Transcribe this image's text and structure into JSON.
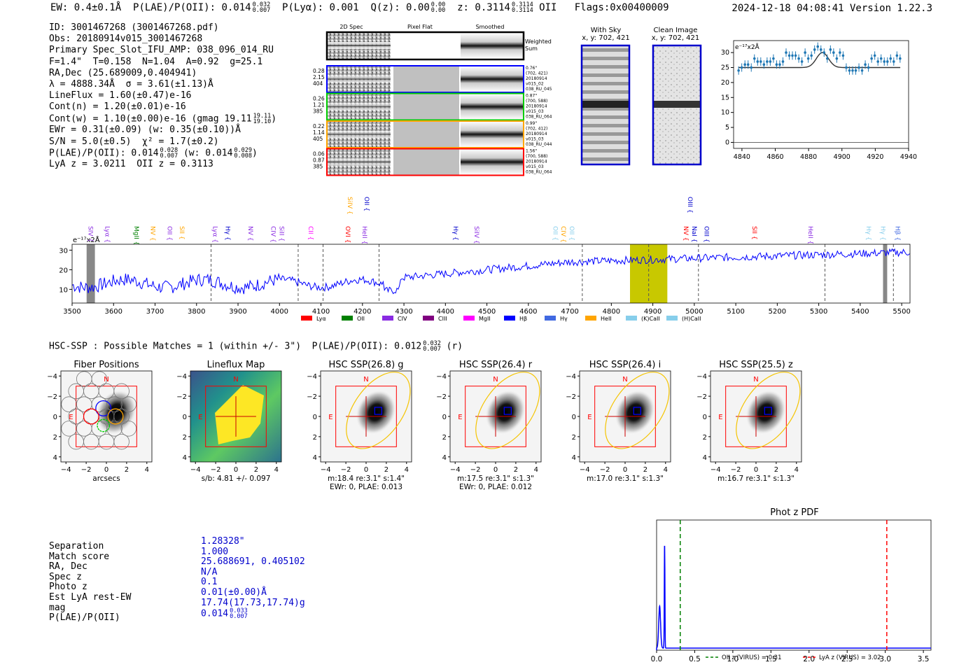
{
  "header": {
    "ew": "EW: 0.4±0.1Å",
    "plae_label": "P(LAE)/P(OII): 0.014",
    "plae_sup": [
      "0.032",
      "0.007"
    ],
    "plya": "P(Lyα): 0.001",
    "qz_label": "Q(z): 0.00",
    "qz_sup": [
      "0.00",
      "0.00"
    ],
    "z_label": "z: 0.3114",
    "z_sup": [
      "0.3114",
      "0.3114"
    ],
    "z_line": "OII",
    "flags": "Flags:0x00400009",
    "timestamp": "2024-12-18 04:08:41  Version 1.22.3"
  },
  "info": {
    "id": "ID: 3001467268 (3001467268.pdf)",
    "obs": "Obs: 20180914v015_3001467268",
    "slot": "Primary Spec_Slot_IFU_AMP: 038_096_014_RU",
    "fit": "F=1.4\"  T=0.158  N=1.04  A=0.92  g=25.1",
    "radec": "RA,Dec (25.689009,0.404941)",
    "lambda": "λ = 4888.34Å  σ = 3.61(±1.13)Å",
    "lineflux": "LineFlux = 1.60(±0.47)e-16",
    "contn": "Cont(n) = 1.20(±0.01)e-16",
    "contw": "Cont(w) = 1.10(±0.00)e-16 (gmag 19.11",
    "contw_sup": [
      "19.11",
      "19.10"
    ],
    "ewr": "EWr = 0.31(±0.09) (w: 0.35(±0.10))Å",
    "sn": "S/N = 5.0(±0.5)  χ² = 1.7(±0.2)",
    "plae": "P(LAE)/P(OII): 0.014",
    "plae_sup": [
      "0.028",
      "0.007"
    ],
    "plae_w": "(w: 0.014",
    "plae_w_sup": [
      "0.029",
      "0.008"
    ],
    "lyaz": "LyA z = 3.0211  OII z = 0.3113"
  },
  "cutouts": {
    "col_headers": [
      "2D Spec",
      "Pixel Flat",
      "Smoothed"
    ],
    "weighted_sum": [
      "Weighted",
      "Sum"
    ],
    "rows": [
      {
        "color": "#0000ff",
        "left": [
          "0.28",
          "2.15",
          "404"
        ],
        "right": [
          "0.76\"",
          "(702, 421)",
          "20180914",
          "v015_02",
          "038_RU_045"
        ]
      },
      {
        "color": "#00cc00",
        "left": [
          "0.26",
          "1.21",
          "385"
        ],
        "right": [
          "0.87\"",
          "(700, 588)",
          "20180914",
          "v015_03",
          "038_RU_064"
        ]
      },
      {
        "color": "#ffa500",
        "left": [
          "0.22",
          "1.14",
          "405"
        ],
        "right": [
          "0.99\"",
          "(702, 412)",
          "20180914",
          "v015_03",
          "038_RU_044"
        ]
      },
      {
        "color": "#ff0000",
        "left": [
          "0.06",
          "0.87",
          "385"
        ],
        "right": [
          "1.56\"",
          "(700, 588)",
          "20180914",
          "v015_03",
          "038_RU_064"
        ]
      }
    ],
    "with_sky": {
      "title": "With Sky",
      "coords": "x, y: 702, 421"
    },
    "clean": {
      "title": "Clean Image",
      "coords": "x, y: 702, 421"
    }
  },
  "zoom_chart": {
    "type": "scatter",
    "ylabel": "e⁻¹⁷x2Å",
    "xlim": [
      4835,
      4940
    ],
    "ylim": [
      -2,
      34
    ],
    "xticks": [
      "4840",
      "4860",
      "4880",
      "4900",
      "4920",
      "4940"
    ],
    "yticks": [
      "0",
      "5",
      "10",
      "15",
      "20",
      "25",
      "30"
    ]
  },
  "spectrum": {
    "ylabel": "e⁻¹⁷x2Å",
    "xticks": [
      "3500",
      "3600",
      "3700",
      "3800",
      "3900",
      "4000",
      "4100",
      "4200",
      "4300",
      "4400",
      "4500",
      "4600",
      "4700",
      "4800",
      "4900",
      "5000",
      "5100",
      "5200",
      "5300",
      "5400",
      "5500"
    ],
    "yticks": [
      "10",
      "20",
      "30"
    ],
    "lines": [
      {
        "label": "SIV",
        "color": "#8a2be2",
        "w": 3540,
        "row": 1
      },
      {
        "label": "Lyα",
        "color": "#8a2be2",
        "w": 3580,
        "row": 1
      },
      {
        "label": "MgII",
        "color": "#008000",
        "w": 3650,
        "row": 1
      },
      {
        "label": "NV",
        "color": "#ffa500",
        "w": 3690,
        "row": 1
      },
      {
        "label": "OII",
        "color": "#8a2be2",
        "w": 3730,
        "row": 1
      },
      {
        "label": "SII",
        "color": "#ffa500",
        "w": 3760,
        "row": 1
      },
      {
        "label": "Lyα",
        "color": "#8a2be2",
        "w": 3840,
        "row": 1
      },
      {
        "label": "Hγ",
        "color": "#0000cc",
        "w": 3870,
        "row": 1
      },
      {
        "label": "NV",
        "color": "#8a2be2",
        "w": 3925,
        "row": 1
      },
      {
        "label": "CIV",
        "color": "#8a2be2",
        "w": 3980,
        "row": 1
      },
      {
        "label": "SiII",
        "color": "#8a2be2",
        "w": 4000,
        "row": 1
      },
      {
        "label": "CII",
        "color": "#ff00ff",
        "w": 4070,
        "row": 1
      },
      {
        "label": "OVI",
        "color": "#ff0000",
        "w": 4160,
        "row": 1
      },
      {
        "label": "HeII",
        "color": "#8a2be2",
        "w": 4200,
        "row": 1
      },
      {
        "label": "SiIV",
        "color": "#ffa500",
        "w": 4165,
        "row": 0
      },
      {
        "label": "OII",
        "color": "#0000cc",
        "w": 4205,
        "row": 0
      },
      {
        "label": "Hγ",
        "color": "#0000cc",
        "w": 4420,
        "row": 1
      },
      {
        "label": "SiIV",
        "color": "#8a2be2",
        "w": 4470,
        "row": 1
      },
      {
        "label": "OII",
        "color": "#87ceeb",
        "w": 4660,
        "row": 1
      },
      {
        "label": "CIV",
        "color": "#ffa500",
        "w": 4680,
        "row": 1
      },
      {
        "label": "OII",
        "color": "#87ceeb",
        "w": 4700,
        "row": 1
      },
      {
        "label": "NV",
        "color": "#ff0000",
        "w": 4975,
        "row": 1
      },
      {
        "label": "NaI",
        "color": "#0000cc",
        "w": 4995,
        "row": 1
      },
      {
        "label": "OIII",
        "color": "#0000cc",
        "w": 5025,
        "row": 1
      },
      {
        "label": "OIII",
        "color": "#0000cc",
        "w": 4985,
        "row": 0
      },
      {
        "label": "SII",
        "color": "#ff0000",
        "w": 5140,
        "row": 1
      },
      {
        "label": "HeII",
        "color": "#8a2be2",
        "w": 5275,
        "row": 1
      },
      {
        "label": "Hγ",
        "color": "#87ceeb",
        "w": 5415,
        "row": 1
      },
      {
        "label": "Hγ",
        "color": "#87ceeb",
        "w": 5450,
        "row": 1
      },
      {
        "label": "Hβ",
        "color": "#4169e1",
        "w": 5485,
        "row": 1
      }
    ],
    "legend": [
      {
        "label": "Lyα",
        "color": "#ff0000"
      },
      {
        "label": "OII",
        "color": "#008000"
      },
      {
        "label": "CIV",
        "color": "#8a2be2"
      },
      {
        "label": "CIII",
        "color": "#800080"
      },
      {
        "label": "MgII",
        "color": "#ff00ff"
      },
      {
        "label": "Hβ",
        "color": "#0000ff"
      },
      {
        "label": "Hγ",
        "color": "#4169e1"
      },
      {
        "label": "HeII",
        "color": "#ffa500"
      },
      {
        "label": "(K)CaII",
        "color": "#87ceeb"
      },
      {
        "label": "(H)CaII",
        "color": "#87ceeb"
      }
    ]
  },
  "hsc": {
    "line_label": "HSC-SSP : Possible Matches = 1 (within +/- 3\")  P(LAE)/P(OII): 0.012",
    "line_sup": [
      "0.032",
      "0.007"
    ],
    "line_tail": "(r)"
  },
  "panels": [
    {
      "title": "Fiber Positions",
      "sub1": "arcsecs",
      "sub2": ""
    },
    {
      "title": "Lineflux Map",
      "sub1": "s/b: 4.81 +/- 0.097",
      "sub2": ""
    },
    {
      "title": "HSC SSP(26.8) g",
      "sub1": "m:18.4  re:3.1\"  s:1.4\"",
      "sub2": "EWr: 0, PLAE: 0.013"
    },
    {
      "title": "HSC SSP(26.4) r",
      "sub1": "m:17.5  re:3.1\"  s:1.3\"",
      "sub2": "EWr: 0, PLAE: 0.012"
    },
    {
      "title": "HSC SSP(26.4) i",
      "sub1": "m:17.0  re:3.1\"  s:1.3\"",
      "sub2": ""
    },
    {
      "title": "HSC SSP(25.5) z",
      "sub1": "m:16.7  re:3.1\"  s:1.3\"",
      "sub2": ""
    }
  ],
  "panel_axes": {
    "ticks": [
      "−4",
      "−2",
      "0",
      "2",
      "4"
    ],
    "n_label": "N",
    "e_label": "E"
  },
  "separation": {
    "labels": [
      "Separation",
      "Match score",
      "RA, Dec",
      "Spec z",
      "Photo z",
      "Est LyA rest-EW",
      "mag",
      "P(LAE)/P(OII)"
    ],
    "values": [
      "1.28328\"",
      "1.000",
      "25.688691, 0.405102",
      "N/A",
      "0.1",
      "0.01(±0.00)Å",
      "17.74(17.73,17.74)g",
      "0.014"
    ],
    "plae_sup": [
      "0.033",
      "0.007"
    ]
  },
  "photz": {
    "title": "Phot z PDF",
    "type": "line",
    "xlim": [
      0,
      3.6
    ],
    "xticks": [
      "0.0",
      "0.5",
      "1.0",
      "1.5",
      "2.0",
      "2.5",
      "3.0",
      "3.5"
    ],
    "oii_z": 0.31,
    "lya_z": 3.02,
    "legend": [
      "OII z (VIRUS) = 0.31",
      "LyA z (VIRUS) = 3.02"
    ]
  },
  "colors": {
    "spectrum": "#0000ff",
    "highlight": "#c8c800",
    "oii": "#008000",
    "lya": "#ff0000"
  }
}
